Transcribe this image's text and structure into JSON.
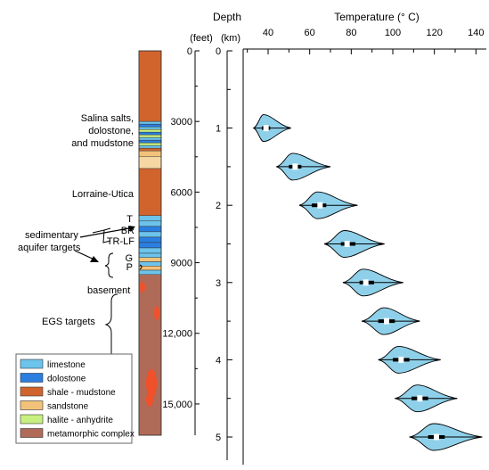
{
  "chart_data": {
    "type": "violin",
    "depth_title": "Depth",
    "feet_label": "(feet)",
    "km_label": "(km)",
    "temp_title": "Temperature (° C)",
    "temp_ticks": [
      40,
      60,
      80,
      100,
      120,
      140
    ],
    "temp_range": [
      28,
      145
    ],
    "km_ticks": [
      0,
      1,
      2,
      3,
      4,
      5
    ],
    "km_range": [
      0,
      5.4
    ],
    "feet_ticks": [
      "0",
      "3000",
      "6000",
      "9000",
      "12,000",
      "15,000"
    ],
    "feet_values": [
      0,
      3000,
      6000,
      9000,
      12000,
      15000
    ],
    "distributions": [
      {
        "depth_km": 1.0,
        "median_c": 39,
        "q1": 37,
        "q3": 41,
        "min": 33,
        "max": 51
      },
      {
        "depth_km": 1.5,
        "median_c": 53,
        "q1": 50,
        "q3": 56,
        "min": 44,
        "max": 70
      },
      {
        "depth_km": 2.0,
        "median_c": 65,
        "q1": 61,
        "q3": 68,
        "min": 55,
        "max": 83
      },
      {
        "depth_km": 2.5,
        "median_c": 78,
        "q1": 75,
        "q3": 82,
        "min": 67,
        "max": 96
      },
      {
        "depth_km": 3.0,
        "median_c": 87,
        "q1": 84,
        "q3": 91,
        "min": 76,
        "max": 105
      },
      {
        "depth_km": 3.5,
        "median_c": 97,
        "q1": 93,
        "q3": 101,
        "min": 85,
        "max": 113
      },
      {
        "depth_km": 4.0,
        "median_c": 104,
        "q1": 100,
        "q3": 108,
        "min": 93,
        "max": 123
      },
      {
        "depth_km": 4.5,
        "median_c": 113,
        "q1": 109,
        "q3": 117,
        "min": 101,
        "max": 131
      },
      {
        "depth_km": 5.0,
        "median_c": 121,
        "q1": 117,
        "q3": 125,
        "min": 108,
        "max": 143
      }
    ]
  },
  "strat_column": {
    "units": [
      {
        "top_ft": 0,
        "base_ft": 3000,
        "lithology": "shale"
      },
      {
        "top_ft": 3000,
        "base_ft": 4250,
        "lithology": "salina-mix"
      },
      {
        "top_ft": 4250,
        "base_ft": 4500,
        "lithology": "sandstone"
      },
      {
        "top_ft": 4500,
        "base_ft": 5000,
        "lithology": "sandstone-light"
      },
      {
        "top_ft": 5000,
        "base_ft": 7000,
        "lithology": "shale"
      },
      {
        "top_ft": 7000,
        "base_ft": 8600,
        "lithology": "carbonate-mix"
      },
      {
        "top_ft": 8600,
        "base_ft": 9500,
        "lithology": "sand-mix"
      },
      {
        "top_ft": 9500,
        "base_ft": 16500,
        "lithology": "metamorphic"
      }
    ],
    "labels": {
      "salina": [
        "Salina salts,",
        "dolostone,",
        "and mudstone"
      ],
      "lorraine": "Lorraine-Utica",
      "T": "T",
      "BR": "BR",
      "TRLF": "TR-LF",
      "G": "G",
      "P": "P",
      "sedimentary": [
        "sedimentary",
        "aquifer targets"
      ],
      "basement": "basement",
      "egs": "EGS targets"
    }
  },
  "legend": [
    {
      "label": "limestone",
      "color": "#6cc4ec"
    },
    {
      "label": "dolostone",
      "color": "#2a7fe0"
    },
    {
      "label": "shale - mudstone",
      "color": "#d0642c"
    },
    {
      "label": "sandstone",
      "color": "#f2c27a"
    },
    {
      "label": "halite - anhydrite",
      "color": "#c8f080"
    },
    {
      "label": "metamorphic complex",
      "color": "#b06a58"
    }
  ],
  "colors": {
    "violin_fill": "#8ed0ea",
    "violin_stroke": "#000000",
    "median_marker": "#ffffff",
    "shale": "#d0642c",
    "limestone": "#6cc4ec",
    "dolostone": "#2a7fe0",
    "sandstone": "#f2c27a",
    "halite": "#c8f080",
    "metamorphic": "#b06a58",
    "metamorphic_spot": "#f0502a"
  }
}
